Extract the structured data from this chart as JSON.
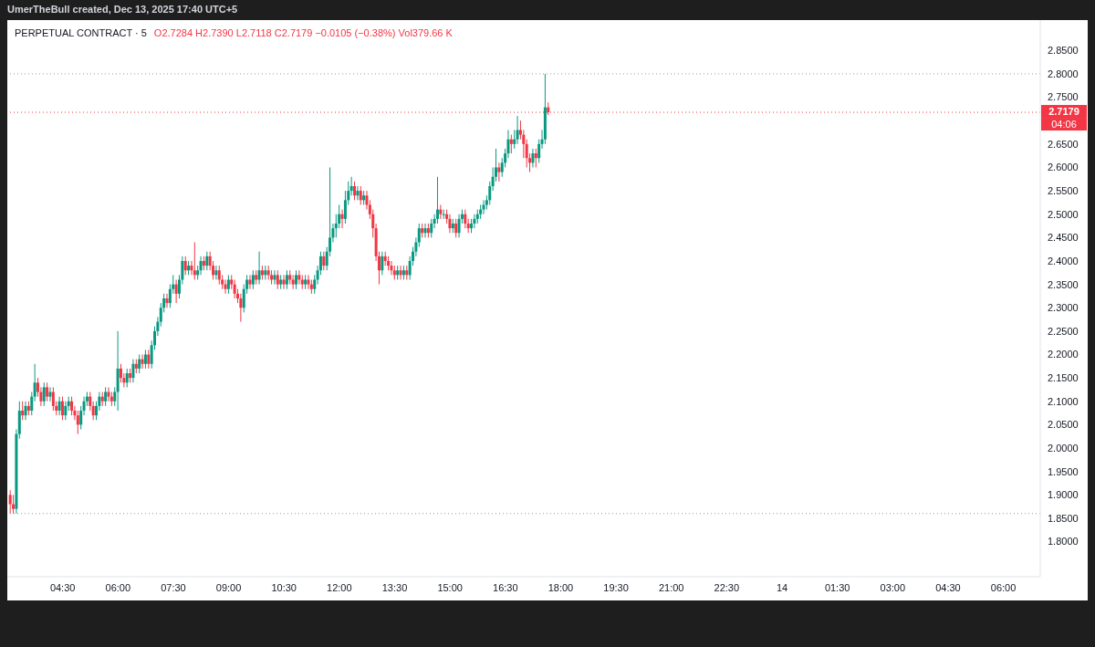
{
  "chart_data": {
    "type": "candlestick",
    "title": "PERPETUAL CONTRACT · 5",
    "annotations": [
      "UmerTheBull created, Dec 13, 2025 17:40 UTC+5",
      "O2.7284 H2.7390 L2.7118 C2.7179 −0.0105 (−0.38%) Vol379.66 K",
      "04:06"
    ],
    "x": [
      "2025-12-13T03:05",
      "2025-12-13T03:10",
      "2025-12-13T03:15",
      "2025-12-13T03:20",
      "2025-12-13T03:25",
      "2025-12-13T03:30",
      "2025-12-13T03:35",
      "2025-12-13T03:40",
      "2025-12-13T03:45",
      "2025-12-13T03:50",
      "2025-12-13T03:55",
      "2025-12-13T04:00",
      "2025-12-13T04:05",
      "2025-12-13T04:10",
      "2025-12-13T04:15",
      "2025-12-13T04:20",
      "2025-12-13T04:25",
      "2025-12-13T04:30",
      "2025-12-13T04:35",
      "2025-12-13T04:40",
      "2025-12-13T04:45",
      "2025-12-13T04:50",
      "2025-12-13T04:55",
      "2025-12-13T05:00",
      "2025-12-13T05:05",
      "2025-12-13T05:10",
      "2025-12-13T05:15",
      "2025-12-13T05:20",
      "2025-12-13T05:25",
      "2025-12-13T05:30",
      "2025-12-13T05:35",
      "2025-12-13T05:40",
      "2025-12-13T05:45",
      "2025-12-13T05:50",
      "2025-12-13T05:55",
      "2025-12-13T06:00",
      "2025-12-13T06:05",
      "2025-12-13T06:10",
      "2025-12-13T06:15",
      "2025-12-13T06:20",
      "2025-12-13T06:25",
      "2025-12-13T06:30",
      "2025-12-13T06:35",
      "2025-12-13T06:40",
      "2025-12-13T06:45",
      "2025-12-13T06:50",
      "2025-12-13T06:55",
      "2025-12-13T07:00",
      "2025-12-13T07:05",
      "2025-12-13T07:10",
      "2025-12-13T07:15",
      "2025-12-13T07:20",
      "2025-12-13T07:25",
      "2025-12-13T07:30",
      "2025-12-13T07:35",
      "2025-12-13T07:40",
      "2025-12-13T07:45",
      "2025-12-13T07:50",
      "2025-12-13T07:55",
      "2025-12-13T08:00",
      "2025-12-13T08:05",
      "2025-12-13T08:10",
      "2025-12-13T08:15",
      "2025-12-13T08:20",
      "2025-12-13T08:25",
      "2025-12-13T08:30",
      "2025-12-13T08:35",
      "2025-12-13T08:40",
      "2025-12-13T08:45",
      "2025-12-13T08:50",
      "2025-12-13T08:55",
      "2025-12-13T09:00",
      "2025-12-13T09:05",
      "2025-12-13T09:10",
      "2025-12-13T09:15",
      "2025-12-13T09:20",
      "2025-12-13T09:25",
      "2025-12-13T09:30",
      "2025-12-13T09:35",
      "2025-12-13T09:40",
      "2025-12-13T09:45",
      "2025-12-13T09:50",
      "2025-12-13T09:55",
      "2025-12-13T10:00",
      "2025-12-13T10:05",
      "2025-12-13T10:10",
      "2025-12-13T10:15",
      "2025-12-13T10:20",
      "2025-12-13T10:25",
      "2025-12-13T10:30",
      "2025-12-13T10:35",
      "2025-12-13T10:40",
      "2025-12-13T10:45",
      "2025-12-13T10:50",
      "2025-12-13T10:55",
      "2025-12-13T11:00",
      "2025-12-13T11:05",
      "2025-12-13T11:10",
      "2025-12-13T11:15",
      "2025-12-13T11:20",
      "2025-12-13T11:25",
      "2025-12-13T11:30",
      "2025-12-13T11:35",
      "2025-12-13T11:40",
      "2025-12-13T11:45",
      "2025-12-13T11:50",
      "2025-12-13T11:55",
      "2025-12-13T12:00",
      "2025-12-13T12:05",
      "2025-12-13T12:10",
      "2025-12-13T12:15",
      "2025-12-13T12:20",
      "2025-12-13T12:25",
      "2025-12-13T12:30",
      "2025-12-13T12:35",
      "2025-12-13T12:40",
      "2025-12-13T12:45",
      "2025-12-13T12:50",
      "2025-12-13T12:55",
      "2025-12-13T13:00",
      "2025-12-13T13:05",
      "2025-12-13T13:10",
      "2025-12-13T13:15",
      "2025-12-13T13:20",
      "2025-12-13T13:25",
      "2025-12-13T13:30",
      "2025-12-13T13:35",
      "2025-12-13T13:40",
      "2025-12-13T13:45",
      "2025-12-13T13:50",
      "2025-12-13T13:55",
      "2025-12-13T14:00",
      "2025-12-13T14:05",
      "2025-12-13T14:10",
      "2025-12-13T14:15",
      "2025-12-13T14:20",
      "2025-12-13T14:25",
      "2025-12-13T14:30",
      "2025-12-13T14:35",
      "2025-12-13T14:40",
      "2025-12-13T14:45",
      "2025-12-13T14:50",
      "2025-12-13T14:55",
      "2025-12-13T15:00",
      "2025-12-13T15:05",
      "2025-12-13T15:10",
      "2025-12-13T15:15",
      "2025-12-13T15:20",
      "2025-12-13T15:25",
      "2025-12-13T15:30",
      "2025-12-13T15:35",
      "2025-12-13T15:40",
      "2025-12-13T15:45",
      "2025-12-13T15:50",
      "2025-12-13T15:55",
      "2025-12-13T16:00",
      "2025-12-13T16:05",
      "2025-12-13T16:10",
      "2025-12-13T16:15",
      "2025-12-13T16:20",
      "2025-12-13T16:25",
      "2025-12-13T16:30",
      "2025-12-13T16:35",
      "2025-12-13T16:40",
      "2025-12-13T16:45",
      "2025-12-13T16:50",
      "2025-12-13T16:55",
      "2025-12-13T17:00",
      "2025-12-13T17:05",
      "2025-12-13T17:10",
      "2025-12-13T17:15",
      "2025-12-13T17:20",
      "2025-12-13T17:25",
      "2025-12-13T17:30",
      "2025-12-13T17:35",
      "2025-12-13T17:40"
    ],
    "ohlc": [
      [
        1.9,
        1.91,
        1.86,
        1.88
      ],
      [
        1.88,
        1.9,
        1.86,
        1.87
      ],
      [
        1.87,
        2.04,
        1.86,
        2.03
      ],
      [
        2.03,
        2.1,
        2.02,
        2.08
      ],
      [
        2.08,
        2.1,
        2.06,
        2.07
      ],
      [
        2.07,
        2.1,
        2.06,
        2.09
      ],
      [
        2.09,
        2.1,
        2.07,
        2.08
      ],
      [
        2.08,
        2.12,
        2.07,
        2.11
      ],
      [
        2.11,
        2.18,
        2.1,
        2.14
      ],
      [
        2.14,
        2.15,
        2.11,
        2.12
      ],
      [
        2.12,
        2.13,
        2.09,
        2.1
      ],
      [
        2.1,
        2.14,
        2.09,
        2.13
      ],
      [
        2.13,
        2.14,
        2.1,
        2.11
      ],
      [
        2.11,
        2.13,
        2.1,
        2.12
      ],
      [
        2.12,
        2.13,
        2.08,
        2.09
      ],
      [
        2.09,
        2.1,
        2.07,
        2.08
      ],
      [
        2.08,
        2.11,
        2.07,
        2.1
      ],
      [
        2.1,
        2.11,
        2.06,
        2.07
      ],
      [
        2.07,
        2.1,
        2.06,
        2.09
      ],
      [
        2.09,
        2.11,
        2.08,
        2.1
      ],
      [
        2.1,
        2.11,
        2.07,
        2.08
      ],
      [
        2.08,
        2.09,
        2.06,
        2.07
      ],
      [
        2.07,
        2.08,
        2.03,
        2.05
      ],
      [
        2.05,
        2.09,
        2.04,
        2.08
      ],
      [
        2.08,
        2.11,
        2.07,
        2.1
      ],
      [
        2.1,
        2.12,
        2.09,
        2.11
      ],
      [
        2.11,
        2.12,
        2.08,
        2.09
      ],
      [
        2.09,
        2.1,
        2.06,
        2.07
      ],
      [
        2.07,
        2.1,
        2.06,
        2.09
      ],
      [
        2.09,
        2.12,
        2.08,
        2.11
      ],
      [
        2.11,
        2.12,
        2.09,
        2.1
      ],
      [
        2.1,
        2.13,
        2.09,
        2.12
      ],
      [
        2.12,
        2.13,
        2.1,
        2.11
      ],
      [
        2.11,
        2.12,
        2.09,
        2.1
      ],
      [
        2.1,
        2.13,
        2.09,
        2.12
      ],
      [
        2.12,
        2.25,
        2.08,
        2.17
      ],
      [
        2.17,
        2.18,
        2.14,
        2.15
      ],
      [
        2.15,
        2.16,
        2.13,
        2.14
      ],
      [
        2.14,
        2.17,
        2.13,
        2.16
      ],
      [
        2.16,
        2.17,
        2.14,
        2.15
      ],
      [
        2.15,
        2.19,
        2.14,
        2.18
      ],
      [
        2.18,
        2.19,
        2.16,
        2.17
      ],
      [
        2.17,
        2.2,
        2.16,
        2.19
      ],
      [
        2.19,
        2.2,
        2.17,
        2.18
      ],
      [
        2.18,
        2.21,
        2.17,
        2.2
      ],
      [
        2.2,
        2.21,
        2.17,
        2.18
      ],
      [
        2.18,
        2.23,
        2.17,
        2.22
      ],
      [
        2.22,
        2.26,
        2.21,
        2.25
      ],
      [
        2.25,
        2.28,
        2.24,
        2.27
      ],
      [
        2.27,
        2.31,
        2.26,
        2.3
      ],
      [
        2.3,
        2.33,
        2.29,
        2.32
      ],
      [
        2.32,
        2.33,
        2.3,
        2.31
      ],
      [
        2.31,
        2.35,
        2.3,
        2.34
      ],
      [
        2.34,
        2.37,
        2.33,
        2.35
      ],
      [
        2.35,
        2.36,
        2.31,
        2.33
      ],
      [
        2.33,
        2.37,
        2.32,
        2.36
      ],
      [
        2.36,
        2.41,
        2.35,
        2.4
      ],
      [
        2.4,
        2.41,
        2.37,
        2.38
      ],
      [
        2.38,
        2.4,
        2.37,
        2.39
      ],
      [
        2.39,
        2.4,
        2.37,
        2.38
      ],
      [
        2.38,
        2.44,
        2.36,
        2.37
      ],
      [
        2.37,
        2.39,
        2.36,
        2.38
      ],
      [
        2.38,
        2.41,
        2.37,
        2.4
      ],
      [
        2.4,
        2.41,
        2.38,
        2.39
      ],
      [
        2.39,
        2.42,
        2.38,
        2.41
      ],
      [
        2.41,
        2.42,
        2.38,
        2.39
      ],
      [
        2.39,
        2.4,
        2.36,
        2.37
      ],
      [
        2.37,
        2.39,
        2.36,
        2.38
      ],
      [
        2.38,
        2.39,
        2.35,
        2.36
      ],
      [
        2.36,
        2.37,
        2.34,
        2.35
      ],
      [
        2.35,
        2.36,
        2.33,
        2.34
      ],
      [
        2.34,
        2.37,
        2.33,
        2.36
      ],
      [
        2.36,
        2.37,
        2.34,
        2.35
      ],
      [
        2.35,
        2.36,
        2.32,
        2.33
      ],
      [
        2.33,
        2.34,
        2.31,
        2.32
      ],
      [
        2.32,
        2.33,
        2.27,
        2.3
      ],
      [
        2.3,
        2.35,
        2.29,
        2.34
      ],
      [
        2.34,
        2.37,
        2.33,
        2.36
      ],
      [
        2.36,
        2.37,
        2.34,
        2.35
      ],
      [
        2.35,
        2.38,
        2.34,
        2.37
      ],
      [
        2.37,
        2.38,
        2.35,
        2.36
      ],
      [
        2.36,
        2.42,
        2.35,
        2.38
      ],
      [
        2.38,
        2.39,
        2.36,
        2.37
      ],
      [
        2.37,
        2.39,
        2.36,
        2.38
      ],
      [
        2.38,
        2.39,
        2.36,
        2.37
      ],
      [
        2.37,
        2.38,
        2.35,
        2.36
      ],
      [
        2.36,
        2.38,
        2.35,
        2.37
      ],
      [
        2.37,
        2.38,
        2.34,
        2.35
      ],
      [
        2.35,
        2.37,
        2.34,
        2.36
      ],
      [
        2.36,
        2.37,
        2.34,
        2.35
      ],
      [
        2.35,
        2.38,
        2.34,
        2.37
      ],
      [
        2.37,
        2.38,
        2.35,
        2.36
      ],
      [
        2.36,
        2.37,
        2.34,
        2.35
      ],
      [
        2.35,
        2.38,
        2.34,
        2.37
      ],
      [
        2.37,
        2.38,
        2.35,
        2.36
      ],
      [
        2.36,
        2.37,
        2.34,
        2.35
      ],
      [
        2.35,
        2.37,
        2.34,
        2.36
      ],
      [
        2.36,
        2.37,
        2.34,
        2.35
      ],
      [
        2.35,
        2.36,
        2.33,
        2.34
      ],
      [
        2.34,
        2.37,
        2.33,
        2.36
      ],
      [
        2.36,
        2.39,
        2.35,
        2.38
      ],
      [
        2.38,
        2.42,
        2.37,
        2.41
      ],
      [
        2.41,
        2.42,
        2.38,
        2.39
      ],
      [
        2.39,
        2.43,
        2.38,
        2.42
      ],
      [
        2.42,
        2.6,
        2.41,
        2.45
      ],
      [
        2.45,
        2.48,
        2.44,
        2.47
      ],
      [
        2.47,
        2.5,
        2.45,
        2.48
      ],
      [
        2.48,
        2.52,
        2.47,
        2.5
      ],
      [
        2.5,
        2.51,
        2.47,
        2.49
      ],
      [
        2.49,
        2.55,
        2.48,
        2.53
      ],
      [
        2.53,
        2.57,
        2.52,
        2.55
      ],
      [
        2.55,
        2.58,
        2.54,
        2.56
      ],
      [
        2.56,
        2.57,
        2.53,
        2.54
      ],
      [
        2.54,
        2.56,
        2.53,
        2.55
      ],
      [
        2.55,
        2.56,
        2.52,
        2.53
      ],
      [
        2.53,
        2.55,
        2.52,
        2.54
      ],
      [
        2.54,
        2.55,
        2.51,
        2.52
      ],
      [
        2.52,
        2.53,
        2.49,
        2.5
      ],
      [
        2.5,
        2.51,
        2.45,
        2.47
      ],
      [
        2.47,
        2.48,
        2.4,
        2.41
      ],
      [
        2.41,
        2.42,
        2.35,
        2.38
      ],
      [
        2.38,
        2.42,
        2.37,
        2.41
      ],
      [
        2.41,
        2.42,
        2.39,
        2.4
      ],
      [
        2.4,
        2.41,
        2.38,
        2.39
      ],
      [
        2.39,
        2.4,
        2.37,
        2.38
      ],
      [
        2.38,
        2.39,
        2.36,
        2.37
      ],
      [
        2.37,
        2.39,
        2.36,
        2.38
      ],
      [
        2.38,
        2.39,
        2.36,
        2.37
      ],
      [
        2.37,
        2.39,
        2.36,
        2.38
      ],
      [
        2.38,
        2.39,
        2.36,
        2.37
      ],
      [
        2.37,
        2.41,
        2.36,
        2.4
      ],
      [
        2.4,
        2.43,
        2.39,
        2.42
      ],
      [
        2.42,
        2.45,
        2.41,
        2.44
      ],
      [
        2.44,
        2.48,
        2.43,
        2.47
      ],
      [
        2.47,
        2.48,
        2.45,
        2.46
      ],
      [
        2.46,
        2.48,
        2.45,
        2.47
      ],
      [
        2.47,
        2.48,
        2.45,
        2.46
      ],
      [
        2.46,
        2.49,
        2.45,
        2.48
      ],
      [
        2.48,
        2.5,
        2.47,
        2.49
      ],
      [
        2.49,
        2.58,
        2.48,
        2.51
      ],
      [
        2.51,
        2.52,
        2.49,
        2.5
      ],
      [
        2.5,
        2.51,
        2.49,
        2.5
      ],
      [
        2.5,
        2.51,
        2.48,
        2.49
      ],
      [
        2.49,
        2.5,
        2.46,
        2.47
      ],
      [
        2.47,
        2.49,
        2.46,
        2.48
      ],
      [
        2.48,
        2.49,
        2.45,
        2.46
      ],
      [
        2.46,
        2.5,
        2.45,
        2.49
      ],
      [
        2.49,
        2.51,
        2.48,
        2.5
      ],
      [
        2.5,
        2.51,
        2.47,
        2.48
      ],
      [
        2.48,
        2.49,
        2.46,
        2.47
      ],
      [
        2.47,
        2.49,
        2.46,
        2.48
      ],
      [
        2.48,
        2.5,
        2.47,
        2.49
      ],
      [
        2.49,
        2.51,
        2.48,
        2.5
      ],
      [
        2.5,
        2.52,
        2.49,
        2.51
      ],
      [
        2.51,
        2.53,
        2.5,
        2.52
      ],
      [
        2.52,
        2.54,
        2.51,
        2.53
      ],
      [
        2.53,
        2.57,
        2.52,
        2.56
      ],
      [
        2.56,
        2.6,
        2.55,
        2.58
      ],
      [
        2.58,
        2.64,
        2.57,
        2.6
      ],
      [
        2.6,
        2.61,
        2.57,
        2.59
      ],
      [
        2.59,
        2.62,
        2.58,
        2.61
      ],
      [
        2.61,
        2.64,
        2.6,
        2.63
      ],
      [
        2.63,
        2.68,
        2.62,
        2.66
      ],
      [
        2.66,
        2.67,
        2.63,
        2.65
      ],
      [
        2.65,
        2.68,
        2.64,
        2.66
      ],
      [
        2.66,
        2.71,
        2.65,
        2.68
      ],
      [
        2.68,
        2.7,
        2.66,
        2.67
      ],
      [
        2.67,
        2.68,
        2.62,
        2.65
      ],
      [
        2.65,
        2.66,
        2.6,
        2.62
      ],
      [
        2.62,
        2.63,
        2.59,
        2.61
      ],
      [
        2.61,
        2.64,
        2.6,
        2.63
      ],
      [
        2.63,
        2.64,
        2.6,
        2.62
      ],
      [
        2.62,
        2.66,
        2.61,
        2.65
      ],
      [
        2.65,
        2.68,
        2.64,
        2.66
      ],
      [
        2.66,
        2.8,
        2.65,
        2.7284
      ],
      [
        2.7284,
        2.739,
        2.7118,
        2.7179
      ]
    ],
    "xlim": [
      "2025-12-13T03:00",
      "2025-12-14T07:00"
    ],
    "xticks": [
      {
        "value": "2025-12-13T04:30",
        "label": "04:30"
      },
      {
        "value": "2025-12-13T06:00",
        "label": "06:00"
      },
      {
        "value": "2025-12-13T07:30",
        "label": "07:30"
      },
      {
        "value": "2025-12-13T09:00",
        "label": "09:00"
      },
      {
        "value": "2025-12-13T10:30",
        "label": "10:30"
      },
      {
        "value": "2025-12-13T12:00",
        "label": "12:00"
      },
      {
        "value": "2025-12-13T13:30",
        "label": "13:30"
      },
      {
        "value": "2025-12-13T15:00",
        "label": "15:00"
      },
      {
        "value": "2025-12-13T16:30",
        "label": "16:30"
      },
      {
        "value": "2025-12-13T18:00",
        "label": "18:00"
      },
      {
        "value": "2025-12-13T19:30",
        "label": "19:30"
      },
      {
        "value": "2025-12-13T21:00",
        "label": "21:00"
      },
      {
        "value": "2025-12-13T22:30",
        "label": "22:30"
      },
      {
        "value": "2025-12-14T00:00",
        "label": "14"
      },
      {
        "value": "2025-12-14T01:30",
        "label": "01:30"
      },
      {
        "value": "2025-12-14T03:00",
        "label": "03:00"
      },
      {
        "value": "2025-12-14T04:30",
        "label": "04:30"
      },
      {
        "value": "2025-12-14T06:00",
        "label": "06:00"
      }
    ],
    "ylim": [
      1.725,
      2.915
    ],
    "yticks": [
      {
        "value": 1.8,
        "label": "1.8000"
      },
      {
        "value": 1.85,
        "label": "1.8500"
      },
      {
        "value": 1.9,
        "label": "1.9000"
      },
      {
        "value": 1.95,
        "label": "1.9500"
      },
      {
        "value": 2.0,
        "label": "2.0000"
      },
      {
        "value": 2.05,
        "label": "2.0500"
      },
      {
        "value": 2.1,
        "label": "2.1000"
      },
      {
        "value": 2.15,
        "label": "2.1500"
      },
      {
        "value": 2.2,
        "label": "2.2000"
      },
      {
        "value": 2.25,
        "label": "2.2500"
      },
      {
        "value": 2.3,
        "label": "2.3000"
      },
      {
        "value": 2.35,
        "label": "2.3500"
      },
      {
        "value": 2.4,
        "label": "2.4000"
      },
      {
        "value": 2.45,
        "label": "2.4500"
      },
      {
        "value": 2.5,
        "label": "2.5000"
      },
      {
        "value": 2.55,
        "label": "2.5500"
      },
      {
        "value": 2.6,
        "label": "2.6000"
      },
      {
        "value": 2.65,
        "label": "2.6500"
      },
      {
        "value": 2.75,
        "label": "2.7500"
      },
      {
        "value": 2.8,
        "label": "2.8000"
      },
      {
        "value": 2.85,
        "label": "2.8500"
      }
    ],
    "ref_lines": [
      {
        "axis": "y",
        "value": 2.8,
        "color": "#9598a1",
        "line_style": "dotted"
      },
      {
        "axis": "y",
        "value": 1.86,
        "color": "#9598a1",
        "line_style": "dotted"
      },
      {
        "axis": "y",
        "value": 2.7179,
        "label": "2.7179",
        "color": "#f23645",
        "line_style": "dotted"
      }
    ]
  }
}
